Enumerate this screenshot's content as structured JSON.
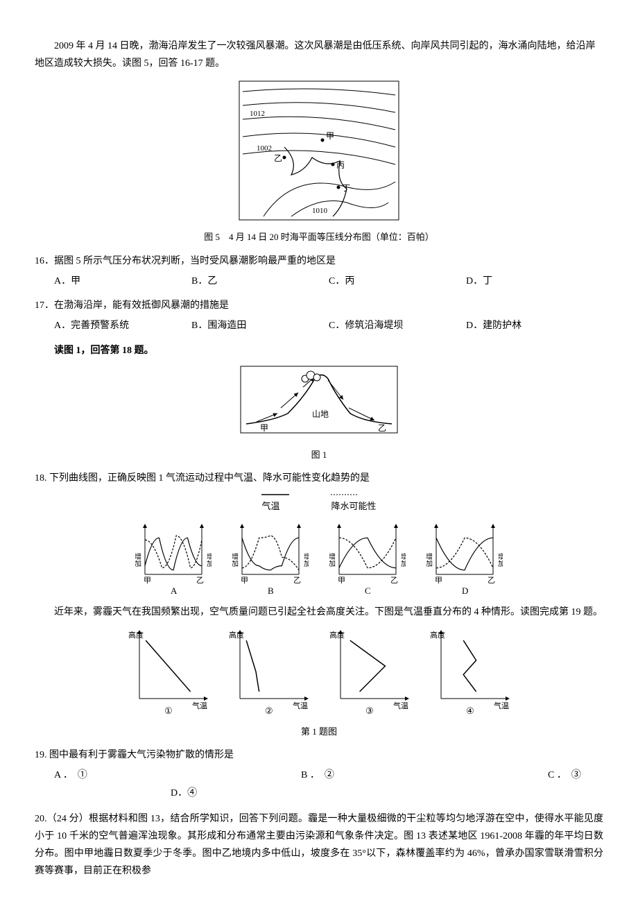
{
  "intro1": "2009 年 4 月 14 日晚，渤海沿岸发生了一次较强风暴潮。这次风暴潮是由低压系统、向岸风共同引起的，海水涌向陆地，给沿岸地区造成较大损失。读图 5，回答 16-17 题。",
  "fig5": {
    "caption": "图 5　4 月 14 日 20 时海平面等压线分布图（单位：百帕）",
    "isobars": [
      "1012",
      "1002",
      "1010"
    ],
    "labels": {
      "jia": "甲",
      "yi": "乙",
      "bing": "丙",
      "ding": "丁"
    },
    "stroke": "#000000"
  },
  "q16": {
    "stem": "16．据图 5 所示气压分布状况判断，当时受风暴潮影响最严重的地区是",
    "opts": {
      "A": "A．甲",
      "B": "B．乙",
      "C": "C．丙",
      "D": "D．丁"
    }
  },
  "q17": {
    "stem": "17．在渤海沿岸，能有效抵御风暴潮的措施是",
    "opts": {
      "A": "A．完善预警系统",
      "B": "B．围海造田",
      "C": "C．修筑沿海堤坝",
      "D": "D．建防护林"
    }
  },
  "intro2": "读图 1，回答第 18 题。",
  "fig1": {
    "caption": "图 1",
    "labels": {
      "jia": "甲",
      "shan": "山地",
      "yi": "乙"
    },
    "stroke": "#000000"
  },
  "q18": {
    "stem": "18. 下列曲线图，正确反映图 1 气流运动过程中气温、降水可能性变化趋势的是",
    "legend": {
      "temp": "气温",
      "rain": "降水可能性"
    },
    "axis_label": "增加",
    "left": "甲",
    "right": "乙",
    "opts": [
      "A",
      "B",
      "C",
      "D"
    ],
    "solid": "#000000",
    "dash": "#000000",
    "charts": {
      "A": {
        "temp": [
          [
            0,
            0.2
          ],
          [
            0.25,
            0.85
          ],
          [
            0.5,
            0.1
          ],
          [
            0.75,
            0.85
          ],
          [
            1,
            0.2
          ]
        ],
        "rain": [
          [
            0,
            0.8
          ],
          [
            0.3,
            0.15
          ],
          [
            0.55,
            0.9
          ],
          [
            0.8,
            0.15
          ],
          [
            1,
            0.8
          ]
        ]
      },
      "B": {
        "temp": [
          [
            0,
            0.85
          ],
          [
            0.3,
            0.2
          ],
          [
            0.5,
            0.1
          ],
          [
            0.7,
            0.2
          ],
          [
            1,
            0.85
          ]
        ],
        "rain": [
          [
            0,
            0.15
          ],
          [
            0.3,
            0.85
          ],
          [
            0.5,
            0.9
          ],
          [
            0.7,
            0.4
          ],
          [
            1,
            0.1
          ]
        ]
      },
      "C": {
        "temp": [
          [
            0,
            0.15
          ],
          [
            0.5,
            0.85
          ],
          [
            1,
            0.15
          ]
        ],
        "rain": [
          [
            0,
            0.85
          ],
          [
            0.5,
            0.15
          ],
          [
            1,
            0.85
          ]
        ]
      },
      "D": {
        "temp": [
          [
            0,
            0.85
          ],
          [
            0.5,
            0.1
          ],
          [
            1,
            0.85
          ]
        ],
        "rain": [
          [
            0,
            0.15
          ],
          [
            0.5,
            0.85
          ],
          [
            1,
            0.15
          ]
        ]
      }
    }
  },
  "intro3": "近年来，雾霾天气在我国频繁出现，空气质量问题已引起全社会高度关注。下图是气温垂直分布的 4 种情形。读图完成第 19 题。",
  "tempfig": {
    "ylabel": "高度",
    "xlabel": "气温",
    "caption": "第 1 题图",
    "opts": [
      "①",
      "②",
      "③",
      "④"
    ],
    "stroke": "#000000",
    "lines": {
      "1": [
        [
          0.8,
          0
        ],
        [
          0.1,
          0.9
        ]
      ],
      "2": [
        [
          0.3,
          0
        ],
        [
          0.25,
          0.35
        ],
        [
          0.1,
          0.9
        ]
      ],
      "3": [
        [
          0.3,
          0
        ],
        [
          0.7,
          0.45
        ],
        [
          0.15,
          0.9
        ]
      ],
      "4": [
        [
          0.55,
          0
        ],
        [
          0.35,
          0.3
        ],
        [
          0.55,
          0.55
        ],
        [
          0.35,
          0.9
        ]
      ]
    }
  },
  "q19": {
    "stem": "19. 图中最有利于雾霾大气污染物扩散的情形是",
    "opts": {
      "A": "A ．　①",
      "B": "B ．　②",
      "C": "C ．　③",
      "D": "D．④"
    }
  },
  "q20": "20.（24 分）根据材料和图 13，结合所学知识，回答下列问题。霾是一种大量极细微的干尘粒等均匀地浮游在空中，使得水平能见度小于 10 千米的空气普遍浑浊现象。其形成和分布通常主要由污染源和气象条件决定。图 13 表述某地区 1961-2008 年霾的年平均日数分布。图中甲地霾日数夏季少于冬季。图中乙地境内多中低山，坡度多在 35°以下，森林覆盖率约为 46%，曾承办国家雪联滑雪积分赛等赛事，目前正在积极参"
}
